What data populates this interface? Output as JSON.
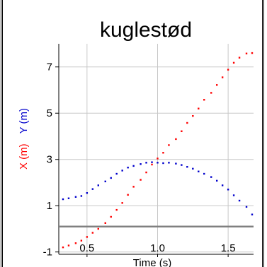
{
  "chart_data": {
    "type": "scatter",
    "title": "kuglestød",
    "xlabel": "Time (s)",
    "ylabels": [
      "X (m)",
      "Y (m)"
    ],
    "xlim": [
      0.3,
      1.68
    ],
    "ylim": [
      -1.1,
      8.0
    ],
    "xticks": [
      "0.5",
      "1.0",
      "1.5"
    ],
    "xtick_values": [
      0.5,
      1.0,
      1.5
    ],
    "yticks": [
      "-1",
      "1",
      "3",
      "5",
      "7"
    ],
    "ytick_values": [
      -1,
      1,
      3,
      5,
      7
    ],
    "grid": true,
    "reference_line": {
      "y": 0.1,
      "color": "#808080"
    },
    "series": [
      {
        "label": "X (m)",
        "color": "#ff0000",
        "x": [
          0.33,
          0.37,
          0.42,
          0.46,
          0.5,
          0.54,
          0.58,
          0.63,
          0.67,
          0.71,
          0.75,
          0.79,
          0.83,
          0.88,
          0.92,
          0.96,
          1.0,
          1.04,
          1.08,
          1.13,
          1.17,
          1.21,
          1.25,
          1.29,
          1.33,
          1.38,
          1.42,
          1.46,
          1.5,
          1.54,
          1.58,
          1.63,
          1.67
        ],
        "y": [
          -0.8,
          -0.72,
          -0.62,
          -0.51,
          -0.35,
          -0.17,
          0.0,
          0.25,
          0.52,
          0.82,
          1.12,
          1.47,
          1.82,
          2.12,
          2.44,
          2.78,
          3.04,
          3.29,
          3.62,
          3.88,
          4.22,
          4.58,
          4.88,
          5.2,
          5.58,
          5.88,
          6.22,
          6.55,
          6.88,
          7.18,
          7.4,
          7.58,
          7.6
        ]
      },
      {
        "label": "Y (m)",
        "color": "#0000cc",
        "x": [
          0.33,
          0.37,
          0.42,
          0.46,
          0.5,
          0.54,
          0.58,
          0.63,
          0.67,
          0.71,
          0.75,
          0.79,
          0.83,
          0.88,
          0.92,
          0.96,
          1.0,
          1.04,
          1.08,
          1.13,
          1.17,
          1.21,
          1.25,
          1.29,
          1.33,
          1.38,
          1.42,
          1.46,
          1.5,
          1.54,
          1.58,
          1.63,
          1.67
        ],
        "y": [
          1.28,
          1.32,
          1.38,
          1.42,
          1.55,
          1.72,
          1.88,
          2.05,
          2.2,
          2.38,
          2.52,
          2.65,
          2.72,
          2.8,
          2.86,
          2.88,
          2.86,
          2.84,
          2.86,
          2.82,
          2.76,
          2.68,
          2.6,
          2.48,
          2.38,
          2.24,
          2.08,
          1.88,
          1.7,
          1.45,
          1.22,
          0.95,
          0.62
        ]
      }
    ]
  }
}
